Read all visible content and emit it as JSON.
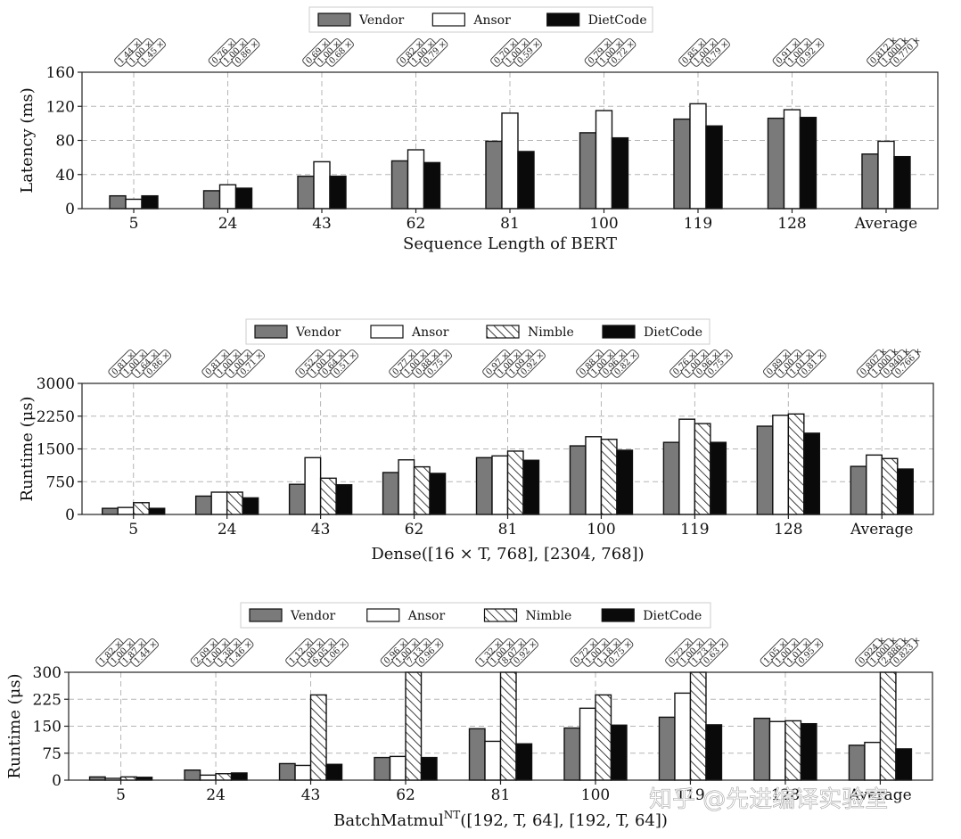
{
  "watermark": "知乎 @先进编译实验室",
  "chart_data": [
    {
      "id": "bert",
      "type": "bar",
      "title": "",
      "xlabel": "Sequence Length of BERT",
      "ylabel": "Latency (ms)",
      "ylim": [
        0,
        160
      ],
      "yticks": [
        0,
        40,
        80,
        120,
        160
      ],
      "categories": [
        "5",
        "24",
        "43",
        "62",
        "81",
        "100",
        "119",
        "128",
        "Average"
      ],
      "grid": true,
      "legend_position": "top-center",
      "series": [
        {
          "name": "Vendor",
          "style": "gray",
          "values": [
            15,
            21,
            38,
            56,
            79,
            89,
            105,
            106,
            64
          ]
        },
        {
          "name": "Ansor",
          "style": "white",
          "values": [
            11,
            28,
            55,
            69,
            112,
            115,
            123,
            116,
            79
          ]
        },
        {
          "name": "DietCode",
          "style": "black",
          "values": [
            15,
            24,
            38,
            54,
            67,
            83,
            97,
            107,
            61
          ]
        }
      ],
      "annotations": [
        [
          "1.44 ×",
          "1.00 ×",
          "1.45 ×"
        ],
        [
          "0.76 ×",
          "1.00 ×",
          "0.86 ×"
        ],
        [
          "0.69 ×",
          "1.00 ×",
          "0.68 ×"
        ],
        [
          "0.82 ×",
          "1.00 ×",
          "0.79 ×"
        ],
        [
          "0.70 ×",
          "1.00 ×",
          "0.59 ×"
        ],
        [
          "0.79 ×",
          "1.00 ×",
          "0.72 ×"
        ],
        [
          "0.85 ×",
          "1.00 ×",
          "0.79 ×"
        ],
        [
          "0.91 ×",
          "1.00 ×",
          "0.92 ×"
        ],
        [
          "0.812 ×",
          "1.000 ×",
          "0.770 ×"
        ]
      ]
    },
    {
      "id": "dense",
      "type": "bar",
      "title": "",
      "xlabel": "Dense([16 × T, 768], [2304, 768])",
      "ylabel": "Runtime (μs)",
      "ylim": [
        0,
        3000
      ],
      "yticks": [
        0,
        750,
        1500,
        2250,
        3000
      ],
      "categories": [
        "5",
        "24",
        "43",
        "62",
        "81",
        "100",
        "119",
        "128",
        "Average"
      ],
      "grid": true,
      "legend_position": "top-center",
      "series": [
        {
          "name": "Vendor",
          "style": "gray",
          "values": [
            140,
            420,
            690,
            960,
            1300,
            1570,
            1650,
            2020,
            1100
          ]
        },
        {
          "name": "Ansor",
          "style": "white",
          "values": [
            160,
            510,
            1300,
            1250,
            1340,
            1780,
            2180,
            2270,
            1360
          ]
        },
        {
          "name": "Nimble",
          "style": "hatch",
          "values": [
            270,
            510,
            830,
            1090,
            1450,
            1720,
            2080,
            2300,
            1280
          ]
        },
        {
          "name": "DietCode",
          "style": "black",
          "values": [
            140,
            380,
            680,
            940,
            1240,
            1470,
            1650,
            1860,
            1040
          ]
        }
      ],
      "annotations": [
        [
          "0.81 ×",
          "1.00 ×",
          "1.64 ×",
          "0.86 ×"
        ],
        [
          "0.81 ×",
          "1.00 ×",
          "1.00 ×",
          "0.71 ×"
        ],
        [
          "0.52 ×",
          "1.00 ×",
          "0.64 ×",
          "0.51 ×"
        ],
        [
          "0.77 ×",
          "1.00 ×",
          "0.88 ×",
          "0.75 ×"
        ],
        [
          "0.97 ×",
          "1.00 ×",
          "1.09 ×",
          "0.92 ×"
        ],
        [
          "0.88 ×",
          "1.00 ×",
          "0.96 ×",
          "0.82 ×"
        ],
        [
          "0.76 ×",
          "1.00 ×",
          "0.96 ×",
          "0.75 ×"
        ],
        [
          "0.89 ×",
          "1.00 ×",
          "1.01 ×",
          "0.81 ×"
        ],
        [
          "0.807 ×",
          "1.000 ×",
          "0.940 ×",
          "0.766 ×"
        ]
      ]
    },
    {
      "id": "batchmatmul",
      "type": "bar",
      "title": "",
      "xlabel": "BatchMatmulNT([192, T, 64], [192, T, 64])",
      "xlabel_main": "BatchMatmul",
      "xlabel_sup": "NT",
      "xlabel_rest": "([192, T, 64], [192, T, 64])",
      "ylabel": "Runtime (μs)",
      "ylim": [
        0,
        300
      ],
      "yticks": [
        0,
        75,
        150,
        225,
        300
      ],
      "categories": [
        "5",
        "24",
        "43",
        "62",
        "81",
        "100",
        "119",
        "128",
        "Average"
      ],
      "grid": true,
      "legend_position": "top-center",
      "series": [
        {
          "name": "Vendor",
          "style": "gray",
          "values": [
            9,
            28,
            46,
            63,
            143,
            145,
            175,
            172,
            97
          ]
        },
        {
          "name": "Ansor",
          "style": "white",
          "values": [
            5,
            14,
            41,
            66,
            108,
            200,
            242,
            163,
            105
          ]
        },
        {
          "name": "Nimble",
          "style": "hatch",
          "values": [
            9,
            18,
            237,
            300,
            300,
            237,
            300,
            165,
            300
          ]
        },
        {
          "name": "DietCode",
          "style": "black",
          "values": [
            8,
            20,
            44,
            63,
            101,
            153,
            154,
            157,
            87
          ]
        }
      ],
      "annotations": [
        [
          "1.82 ×",
          "1.00 ×",
          "1.87 ×",
          "1.44 ×"
        ],
        [
          "2.09 ×",
          "1.00 ×",
          "1.38 ×",
          "1.46 ×"
        ],
        [
          "1.12 ×",
          "1.00 ×",
          "6.05 ×",
          "1.06 ×"
        ],
        [
          "0.96 ×",
          "1.00 ×",
          "7.13 ×",
          "0.96 ×"
        ],
        [
          "1.32 ×",
          "1.00 ×",
          "8.07 ×",
          "0.92 ×"
        ],
        [
          "0.72 ×",
          "1.00 ×",
          "1.18 ×",
          "0.75 ×"
        ],
        [
          "0.72 ×",
          "1.00 ×",
          "1.73 ×",
          "0.63 ×"
        ],
        [
          "1.05 ×",
          "1.00 ×",
          "1.01 ×",
          "0.95 ×"
        ],
        [
          "0.924 ×",
          "1.000 ×",
          "2.886 ×",
          "0.823 ×"
        ]
      ]
    }
  ]
}
